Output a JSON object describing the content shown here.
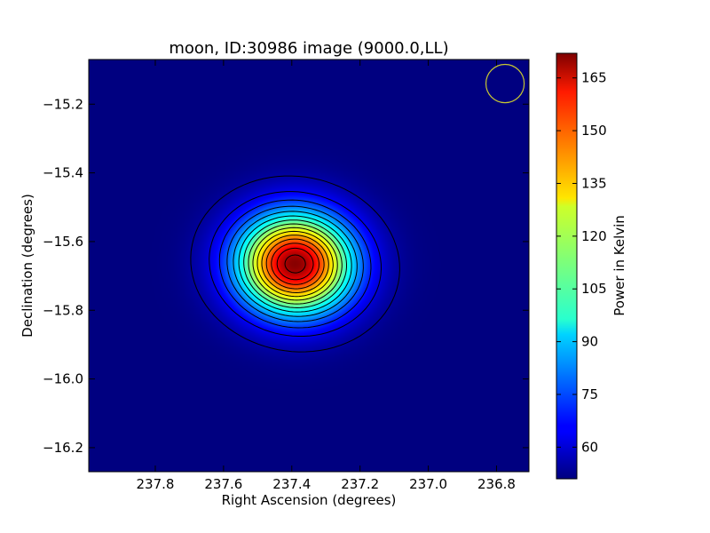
{
  "chart_data": {
    "type": "heatmap",
    "title": "moon, ID:30986 image (9000.0,LL)",
    "xlabel": "Right Ascension (degrees)",
    "ylabel": "Declination (degrees)",
    "xlim": [
      237.995,
      236.705
    ],
    "ylim": [
      -16.27,
      -15.07
    ],
    "x_ticks": [
      237.8,
      237.6,
      237.4,
      237.2,
      237.0,
      236.8
    ],
    "x_tick_labels": [
      "237.8",
      "237.6",
      "237.4",
      "237.2",
      "237.0",
      "236.8"
    ],
    "y_ticks": [
      -15.2,
      -15.4,
      -15.6,
      -15.8,
      -16.0,
      -16.2
    ],
    "y_tick_labels": [
      "−15.2",
      "−15.4",
      "−15.6",
      "−15.8",
      "−16.0",
      "−16.2"
    ],
    "colorscale": "jet",
    "colorbar": {
      "label": "Power in Kelvin",
      "min": 51,
      "max": 172,
      "ticks": [
        60,
        75,
        90,
        105,
        120,
        135,
        150,
        165
      ],
      "tick_labels": [
        "60",
        "75",
        "90",
        "105",
        "120",
        "135",
        "150",
        "165"
      ]
    },
    "source": {
      "center_ra": 237.39,
      "center_dec": -15.665,
      "peak": 171,
      "background": 51,
      "sigma_ra_deg": 0.115,
      "sigma_dec_deg": 0.1
    },
    "contour_levels": [
      55,
      63,
      71,
      79,
      87,
      95,
      103,
      111,
      119,
      127,
      135,
      143,
      151,
      159,
      167
    ],
    "contour_color": "#000000",
    "beam": {
      "center_ra": 236.775,
      "center_dec": -15.14,
      "radius_deg": 0.056,
      "color": "#c8c832"
    },
    "grid": false
  }
}
